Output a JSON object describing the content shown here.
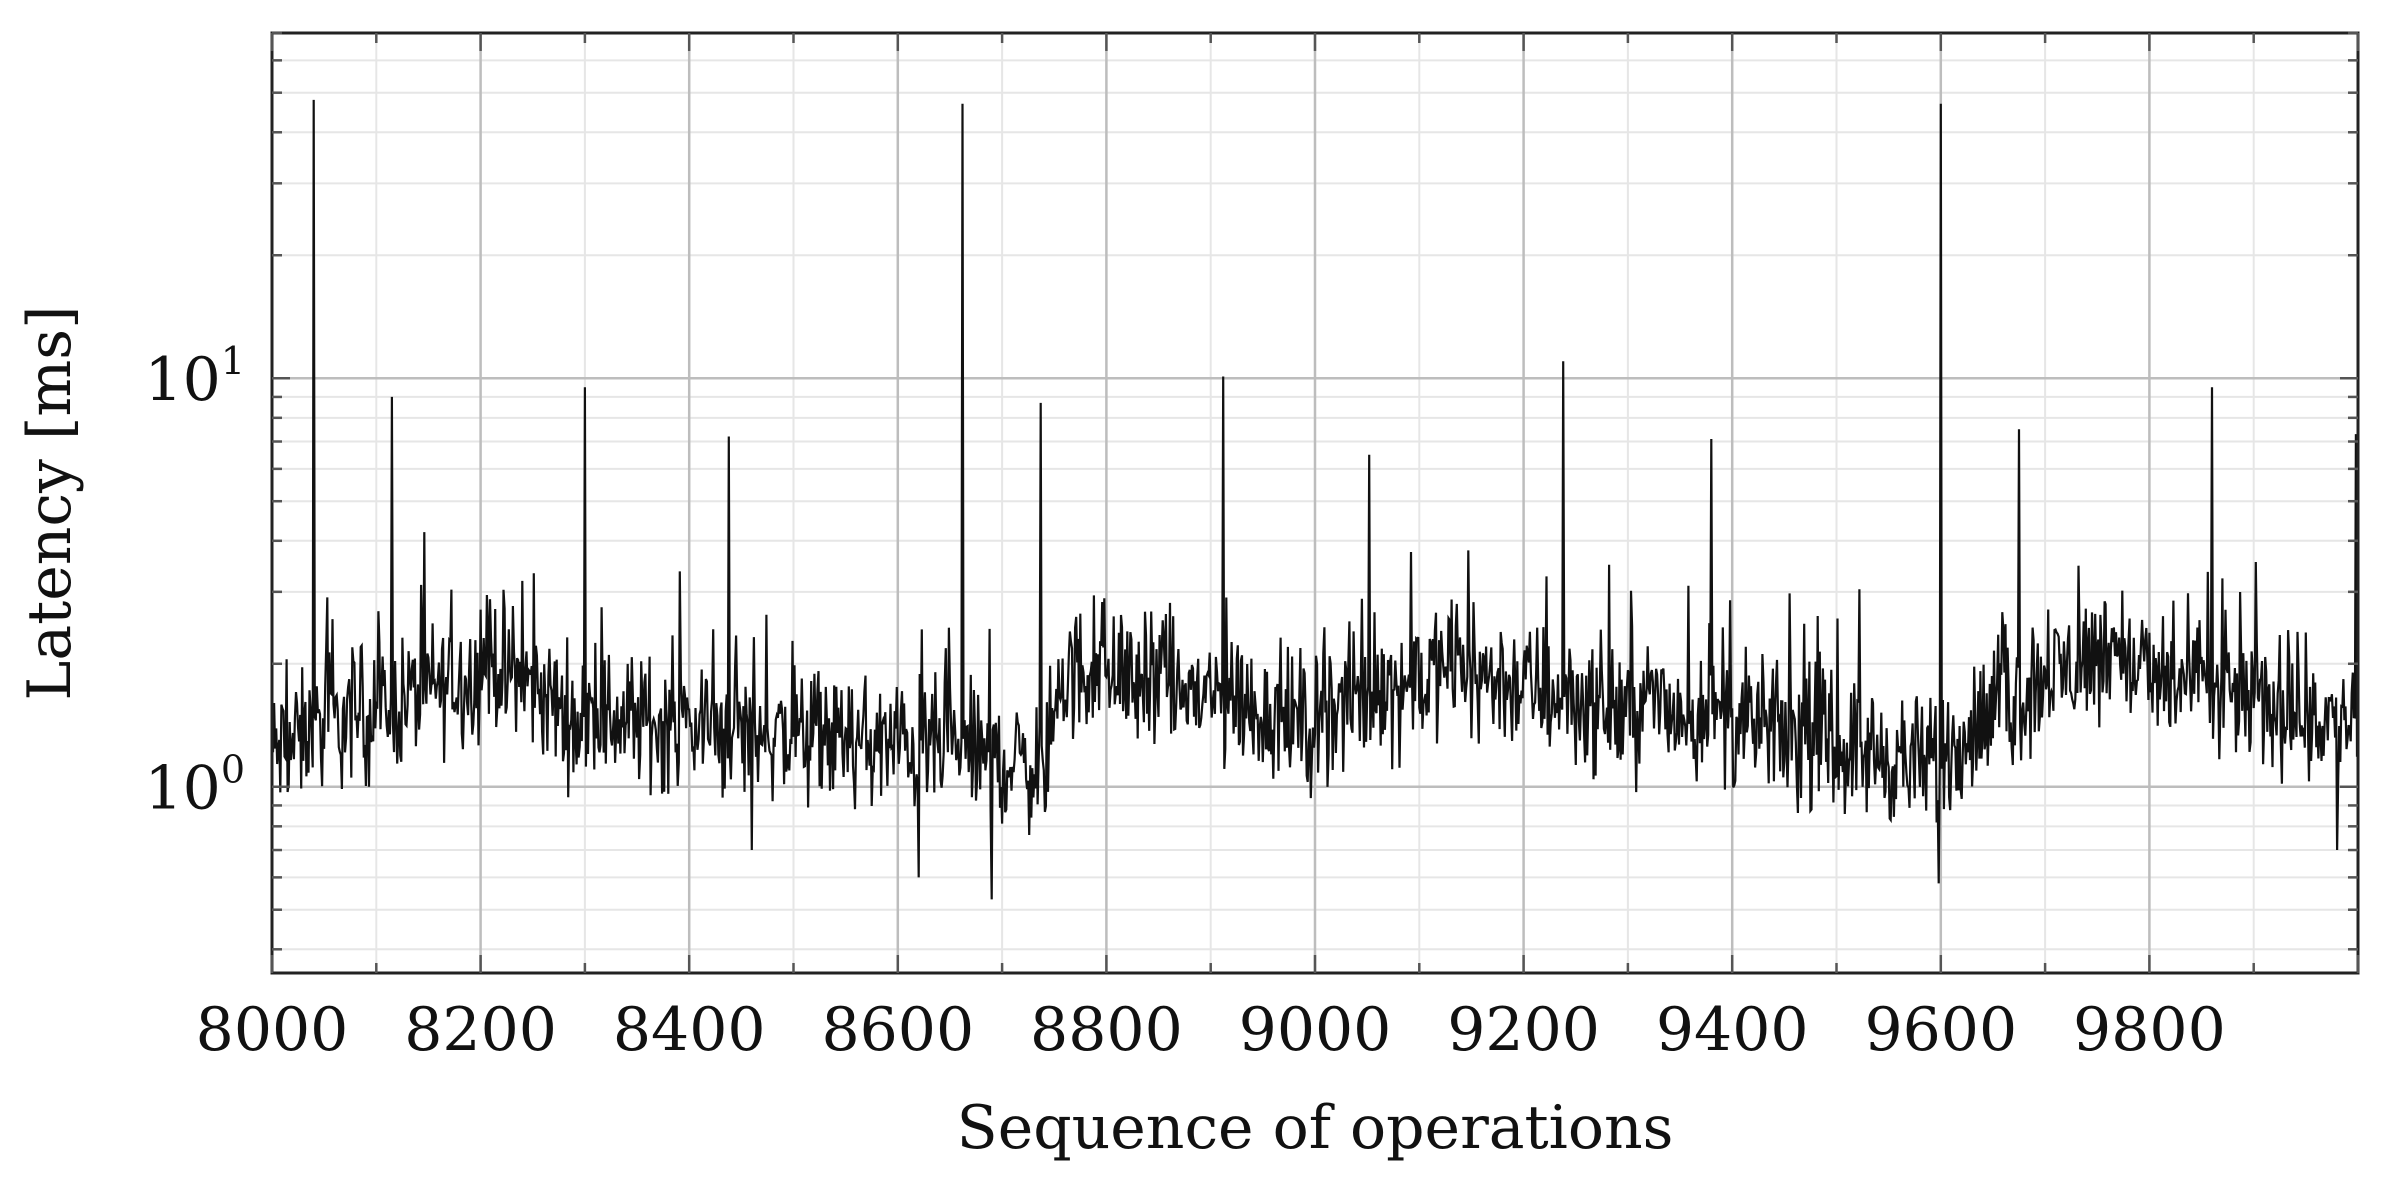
{
  "chart_data": {
    "type": "line",
    "xlabel": "Sequence of operations",
    "ylabel": "Latency [ms]",
    "y_scale": "log",
    "xlim": [
      8000,
      10000
    ],
    "ylim": [
      0.35,
      70
    ],
    "x_ticks": [
      8000,
      8200,
      8400,
      8600,
      8800,
      9000,
      9200,
      9400,
      9600,
      9800
    ],
    "x_tick_labels": [
      "8000",
      "8200",
      "8400",
      "8600",
      "8800",
      "9000",
      "9200",
      "9400",
      "9600",
      "9800"
    ],
    "y_ticks": [
      1,
      10
    ],
    "y_tick_labels": [
      {
        "base": "10",
        "exp": "0"
      },
      {
        "base": "10",
        "exp": "1"
      }
    ],
    "grid": "major and minor",
    "series": [
      {
        "color": "#111111",
        "segments": [
          {
            "x0": 8000,
            "x1": 8200,
            "y_start": 1.2,
            "y_end": 1.9
          },
          {
            "x0": 8200,
            "x1": 8300,
            "y_start": 2.1,
            "y_end": 1.4
          },
          {
            "x0": 8300,
            "x1": 8600,
            "y_start": 1.5,
            "y_end": 1.25
          },
          {
            "x0": 8600,
            "x1": 8750,
            "y_start": 1.3,
            "y_end": 1.1
          },
          {
            "x0": 8750,
            "x1": 8800,
            "y_start": 1.8,
            "y_end": 2.0
          },
          {
            "x0": 8800,
            "x1": 9000,
            "y_start": 1.9,
            "y_end": 1.4
          },
          {
            "x0": 9000,
            "x1": 9150,
            "y_start": 1.5,
            "y_end": 2.0
          },
          {
            "x0": 9150,
            "x1": 9300,
            "y_start": 1.9,
            "y_end": 1.5
          },
          {
            "x0": 9300,
            "x1": 9600,
            "y_start": 1.6,
            "y_end": 1.1
          },
          {
            "x0": 9600,
            "x1": 9780,
            "y_start": 1.2,
            "y_end": 2.3
          },
          {
            "x0": 9780,
            "x1": 10000,
            "y_start": 1.9,
            "y_end": 1.4
          }
        ],
        "spikes": [
          {
            "x": 8040,
            "y": 48
          },
          {
            "x": 8115,
            "y": 9
          },
          {
            "x": 8300,
            "y": 9.5
          },
          {
            "x": 8438,
            "y": 7.2
          },
          {
            "x": 8662,
            "y": 47
          },
          {
            "x": 8737,
            "y": 8.7
          },
          {
            "x": 8912,
            "y": 10.1
          },
          {
            "x": 9052,
            "y": 6.5
          },
          {
            "x": 9238,
            "y": 11
          },
          {
            "x": 9380,
            "y": 7.1
          },
          {
            "x": 9600,
            "y": 47
          },
          {
            "x": 9675,
            "y": 7.5
          },
          {
            "x": 9860,
            "y": 9.5
          },
          {
            "x": 9998,
            "y": 7.3
          }
        ],
        "dips": [
          {
            "x": 8620,
            "y": 0.6
          },
          {
            "x": 8690,
            "y": 0.53
          },
          {
            "x": 9598,
            "y": 0.58
          },
          {
            "x": 8460,
            "y": 0.7
          },
          {
            "x": 9980,
            "y": 0.7
          }
        ]
      }
    ]
  }
}
